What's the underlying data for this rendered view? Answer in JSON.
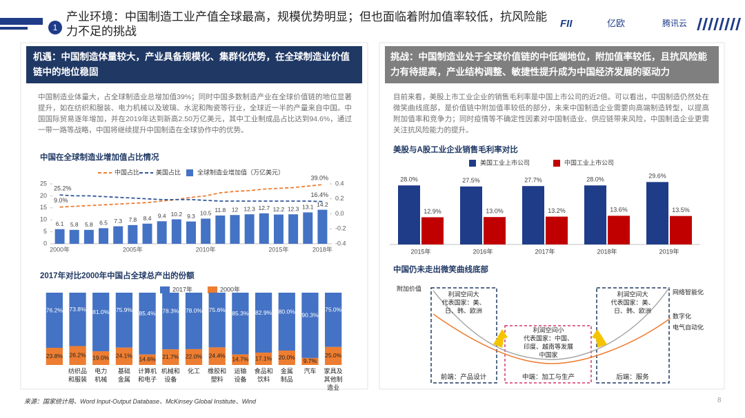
{
  "header": {
    "number": "1",
    "title": "产业环境：中国制造工业产值全球最高，规模优势明显；但也面临着附加值率较低，抗风险能力不足的挑战",
    "logos": [
      "FII",
      "亿欧",
      "腾讯云"
    ]
  },
  "left": {
    "heading": "机遇：中国制造体量较大，产业具备规模化、集群化优势，在全球制造业价值链中的地位稳固",
    "text": "中国制造业体量大，占全球制造业总增加值39%；同时中国多数制造产业在全球价值链的地位显著提升，如在纺织和服装、电力机械以及玻璃、水泥和陶瓷等行业，全球近一半的产量来自中国。中国国际贸易逐年增加，并在2019年达到新高2.50万亿美元，其中工业制成品占比达到94.6%，通过一带一路等战略，中国将继续提升中国制造在全球协作中的优势。"
  },
  "right": {
    "heading": "挑战：中国制造业处于全球价值链的中低端地位，附加值率较低，且抗风险能力有待提高，产业结构调整、敏捷性提升成为中国经济发展的驱动力",
    "text": "目前来看，美股上市工业企业的销售毛利率是中国上市公司的近2倍。可以看出，中国制造仍然处在微笑曲线底部，是价值链中附加值率较低的部分，未来中国制造企业需要向高端制造转型，以提高附加值率和竞争力；同时疫情等不确定性因素对中国制造业、供应链带来风险，中国制造企业更需关注抗风险能力的提升。"
  },
  "chart_data": [
    {
      "type": "combo",
      "title": "中国在全球制造业增加值占比情况",
      "categories": [
        "2000年",
        null,
        null,
        null,
        null,
        "2005年",
        null,
        null,
        null,
        null,
        "2010年",
        null,
        null,
        null,
        null,
        "2015年",
        null,
        null,
        "2018年"
      ],
      "series": [
        {
          "name": "中国占比",
          "type": "line",
          "axis": "y2",
          "color": "#ed7d31",
          "values": [
            0.09,
            0.1,
            0.11,
            0.12,
            0.13,
            0.14,
            0.15,
            0.17,
            0.19,
            0.22,
            0.24,
            0.28,
            0.3,
            0.31,
            0.33,
            0.34,
            0.35,
            0.37,
            0.39
          ],
          "value_labels": [
            "9.0%",
            null,
            null,
            null,
            null,
            null,
            null,
            null,
            null,
            null,
            null,
            null,
            null,
            null,
            null,
            null,
            null,
            null,
            "39.0%"
          ]
        },
        {
          "name": "美国占比",
          "type": "line",
          "axis": "y2",
          "color": "#2f5597",
          "values": [
            0.252,
            0.24,
            0.24,
            0.23,
            0.22,
            0.21,
            0.2,
            0.19,
            0.19,
            0.19,
            0.18,
            0.17,
            0.17,
            0.17,
            0.17,
            0.17,
            0.17,
            0.17,
            0.164
          ],
          "value_labels": [
            "25.2%",
            null,
            null,
            null,
            null,
            null,
            null,
            null,
            null,
            null,
            null,
            null,
            null,
            null,
            null,
            null,
            null,
            null,
            "16.4%"
          ]
        },
        {
          "name": "全球制造业增加值（万亿美元）",
          "type": "bar",
          "color": "#4472c4",
          "values": [
            6.1,
            5.8,
            5.8,
            6.5,
            7.3,
            7.8,
            8.4,
            9.4,
            10.2,
            9.3,
            10.5,
            11.8,
            12.0,
            12.3,
            12.7,
            12.2,
            12.3,
            13.1,
            14.2
          ]
        }
      ],
      "ylim": [
        0,
        25
      ],
      "yticks": [
        0,
        5,
        10,
        15,
        20,
        25
      ],
      "y2lim": [
        -0.4,
        0.4
      ],
      "y2ticks": [
        -0.4,
        -0.2,
        {
          "value": 0,
          "label": "0.0"
        },
        0.2,
        0.4
      ]
    },
    {
      "type": "stacked-bar",
      "title": "2017年对比2000年中国占全球总产出的份额",
      "categories": [
        null,
        "纺织品和服装",
        "电力机械",
        "基础金属",
        "计算机和电子",
        "机械和设备",
        "化工",
        "橡胶和塑料",
        "运输设备",
        "食品和饮料",
        "金属制品",
        "汽车",
        "家具及其他制造业"
      ],
      "series": [
        {
          "name": "2017年",
          "color": "#4472c4",
          "values": [
            76.2,
            73.8,
            81.0,
            75.9,
            85.4,
            78.3,
            78.0,
            75.6,
            85.3,
            82.9,
            80.0,
            90.3,
            75.0
          ],
          "value_labels": [
            "76.2%",
            "73.8%",
            "81.0%",
            "75.9%",
            "85.4%",
            "78.3%",
            "78.0%",
            "75.6%",
            "85.3%",
            "82.9%",
            "80.0%",
            "90.3%",
            "75.0%"
          ]
        },
        {
          "name": "2000年",
          "color": "#ed7d31",
          "values": [
            23.8,
            26.2,
            19.0,
            24.1,
            14.6,
            21.7,
            22.0,
            24.4,
            14.7,
            17.1,
            20.0,
            9.7,
            25.0
          ],
          "value_labels": [
            "23.8%",
            "26.2%",
            "19.0%",
            "24.1%",
            "14.6%",
            "21.7%",
            "22.0%",
            "24.4%",
            "14.7%",
            "17.1%",
            "20.0%",
            "9.7%",
            "25.0%"
          ]
        }
      ],
      "ylim": [
        0,
        100
      ]
    },
    {
      "type": "grouped-bar",
      "title": "美股与A股工业企业销售毛利率对比",
      "categories": [
        "2015年",
        "2016年",
        "2017年",
        "2018年",
        "2019年"
      ],
      "series": [
        {
          "name": "美国工业上市公司",
          "color": "#1f3c88",
          "values": [
            28.0,
            27.5,
            27.7,
            28.0,
            29.6
          ],
          "value_labels": [
            "28.0%",
            "27.5%",
            "27.7%",
            "28.0%",
            "29.6%"
          ]
        },
        {
          "name": "中国工业上市公司",
          "color": "#c00000",
          "values": [
            12.9,
            13.0,
            13.2,
            13.6,
            13.5
          ],
          "value_labels": [
            "12.9%",
            "13.0%",
            "13.2%",
            "13.6%",
            "13.5%"
          ]
        }
      ],
      "ylim": [
        0,
        32
      ]
    }
  ],
  "diagram": {
    "title": "中国仍未走出微笑曲线底部",
    "y_label": "附加价值",
    "left_box": [
      "利润空间大",
      "代表国家：美、",
      "日、韩、欧洲"
    ],
    "middle_box": [
      "利润空间小",
      "代表国家：中国、",
      "印度、越南等发展",
      "中国家"
    ],
    "right_box": [
      "利润空间大",
      "代表国家：美、",
      "日、韩、欧洲"
    ],
    "curve_labels": [
      "网络智能化",
      "数字化",
      "电气自动化"
    ],
    "stages": [
      "前端：产品设计",
      "中端：加工与生产",
      "后端：服务"
    ]
  },
  "footer": {
    "source": "来源：国家统计局、Word Input-Output Database、McKinsey Global Institute、Wind",
    "page": "8"
  }
}
